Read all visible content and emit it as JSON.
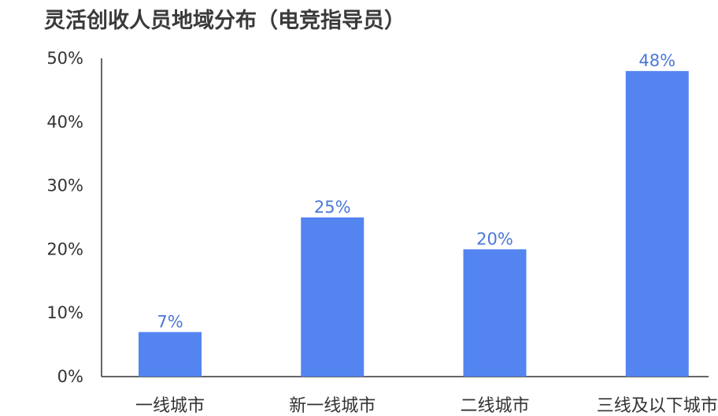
{
  "chart_data": {
    "type": "bar",
    "title": "灵活创收人员地域分布（电竞指导员）",
    "categories": [
      "一线城市",
      "新一线城市",
      "二线城市",
      "三线及以下城市"
    ],
    "values": [
      7,
      25,
      20,
      48
    ],
    "value_labels": [
      "7%",
      "25%",
      "20%",
      "48%"
    ],
    "yticks": [
      0,
      10,
      20,
      30,
      40,
      50
    ],
    "ytick_labels": [
      "0%",
      "10%",
      "20%",
      "30%",
      "40%",
      "50%"
    ],
    "ylim": [
      0,
      50
    ],
    "xlabel": "",
    "ylabel": "",
    "grid": false,
    "bar_color": "#5384f0",
    "label_color": "#4a78d8",
    "axis_color": "#333333"
  }
}
